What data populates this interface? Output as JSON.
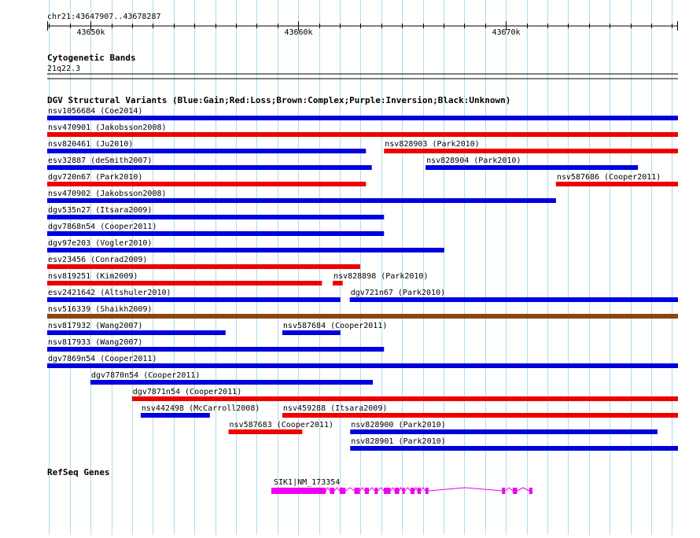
{
  "region": {
    "label": "chr21:43647907..43678287",
    "start": 43647907,
    "end": 43678287
  },
  "ruler": {
    "ticks": [
      {
        "pos": 43650000,
        "label": "43650k"
      },
      {
        "pos": 43660000,
        "label": "43660k"
      },
      {
        "pos": 43670000,
        "label": "43670k"
      }
    ]
  },
  "cytobands": {
    "title": "Cytogenetic Bands",
    "band": "21q22.3"
  },
  "dgv": {
    "title": "DGV Structural Variants (Blue:Gain;Red:Loss;Brown:Complex;Purple:Inversion;Black:Unknown)",
    "colors": {
      "gain": "#0000dd",
      "loss": "#ee0000",
      "complex": "#8b4513",
      "inversion": "#800080",
      "unknown": "#000000"
    },
    "variants": [
      {
        "label": "nsv1056684 (Coe2014)",
        "type": "gain",
        "start": 43647907,
        "end": 43678287,
        "row": 0
      },
      {
        "label": "nsv470901 (Jakobsson2008)",
        "type": "loss",
        "start": 43647907,
        "end": 43678287,
        "row": 1
      },
      {
        "label": "nsv820461 (Ju2010)",
        "type": "gain",
        "start": 43647907,
        "end": 43663260,
        "row": 2
      },
      {
        "label": "nsv828903 (Park2010)",
        "type": "loss",
        "start": 43664130,
        "end": 43678287,
        "row": 2
      },
      {
        "label": "esv32887 (deSmith2007)",
        "type": "gain",
        "start": 43647907,
        "end": 43663540,
        "row": 3
      },
      {
        "label": "nsv828904 (Park2010)",
        "type": "gain",
        "start": 43666130,
        "end": 43676360,
        "row": 3
      },
      {
        "label": "dgv720n67 (Park2010)",
        "type": "loss",
        "start": 43647907,
        "end": 43663260,
        "row": 4
      },
      {
        "label": "nsv587686 (Cooper2011)",
        "type": "loss",
        "start": 43672410,
        "end": 43678287,
        "row": 4
      },
      {
        "label": "nsv470902 (Jakobsson2008)",
        "type": "gain",
        "start": 43647907,
        "end": 43672410,
        "row": 5
      },
      {
        "label": "dgv535n27 (Itsara2009)",
        "type": "gain",
        "start": 43647907,
        "end": 43664130,
        "row": 6
      },
      {
        "label": "dgv7868n54 (Cooper2011)",
        "type": "gain",
        "start": 43647907,
        "end": 43664130,
        "row": 7
      },
      {
        "label": "dgv97e203 (Vogler2010)",
        "type": "gain",
        "start": 43647907,
        "end": 43667030,
        "row": 8
      },
      {
        "label": "esv23456 (Conrad2009)",
        "type": "loss",
        "start": 43647907,
        "end": 43662980,
        "row": 9
      },
      {
        "label": "nsv819251 (Kim2009)",
        "type": "loss",
        "start": 43647907,
        "end": 43661140,
        "row": 10
      },
      {
        "label": "nsv828898 (Park2010)",
        "type": "loss",
        "start": 43661660,
        "end": 43662140,
        "row": 10
      },
      {
        "label": "esv2421642 (Altshuler2010)",
        "type": "gain",
        "start": 43647907,
        "end": 43662030,
        "row": 11
      },
      {
        "label": "dgv721n67 (Park2010)",
        "type": "gain",
        "start": 43662480,
        "end": 43678287,
        "row": 11
      },
      {
        "label": "nsv516339 (Shaikh2009)",
        "type": "complex",
        "start": 43647907,
        "end": 43678287,
        "row": 12
      },
      {
        "label": "nsv817932 (Wang2007)",
        "type": "gain",
        "start": 43647907,
        "end": 43656500,
        "row": 13
      },
      {
        "label": "nsv587684 (Cooper2011)",
        "type": "gain",
        "start": 43659230,
        "end": 43662030,
        "row": 13
      },
      {
        "label": "nsv817933 (Wang2007)",
        "type": "gain",
        "start": 43647907,
        "end": 43664130,
        "row": 14
      },
      {
        "label": "dgv7869n54 (Cooper2011)",
        "type": "gain",
        "start": 43647907,
        "end": 43678287,
        "row": 15
      },
      {
        "label": "dgv7870n54 (Cooper2011)",
        "type": "gain",
        "start": 43649990,
        "end": 43663590,
        "row": 16
      },
      {
        "label": "dgv7871n54 (Cooper2011)",
        "type": "loss",
        "start": 43651990,
        "end": 43678287,
        "row": 17
      },
      {
        "label": "nsv442498 (McCarroll2008)",
        "type": "gain",
        "start": 43652410,
        "end": 43655740,
        "row": 18
      },
      {
        "label": "nsv459288 (Itsara2009)",
        "type": "loss",
        "start": 43659230,
        "end": 43678287,
        "row": 18
      },
      {
        "label": "nsv587683 (Cooper2011)",
        "type": "loss",
        "start": 43656640,
        "end": 43660190,
        "row": 19
      },
      {
        "label": "nsv828900 (Park2010)",
        "type": "gain",
        "start": 43662500,
        "end": 43677300,
        "row": 19
      },
      {
        "label": "nsv828901 (Park2010)",
        "type": "gain",
        "start": 43662500,
        "end": 43678287,
        "row": 20
      }
    ]
  },
  "refseq": {
    "title": "RefSeq Genes",
    "gene_label": "SIK1|NM_173354",
    "color": "#ee00ee",
    "gene_start": 43658700,
    "gene_end": 43671280,
    "exons": [
      {
        "start": 43658700,
        "end": 43661330,
        "utr": false
      },
      {
        "start": 43661520,
        "end": 43661740,
        "utr": false
      },
      {
        "start": 43661990,
        "end": 43662280,
        "utr": false
      },
      {
        "start": 43662700,
        "end": 43662970,
        "utr": false
      },
      {
        "start": 43663200,
        "end": 43663400,
        "utr": false
      },
      {
        "start": 43663680,
        "end": 43663830,
        "utr": false
      },
      {
        "start": 43664120,
        "end": 43664440,
        "utr": false
      },
      {
        "start": 43664640,
        "end": 43664860,
        "utr": false
      },
      {
        "start": 43665020,
        "end": 43665130,
        "utr": false
      },
      {
        "start": 43665400,
        "end": 43665600,
        "utr": false
      },
      {
        "start": 43665740,
        "end": 43665900,
        "utr": false
      },
      {
        "start": 43666120,
        "end": 43666270,
        "utr": false
      },
      {
        "start": 43669810,
        "end": 43669960,
        "utr": false
      },
      {
        "start": 43670330,
        "end": 43670540,
        "utr": false
      },
      {
        "start": 43671120,
        "end": 43671280,
        "utr": false
      }
    ]
  }
}
